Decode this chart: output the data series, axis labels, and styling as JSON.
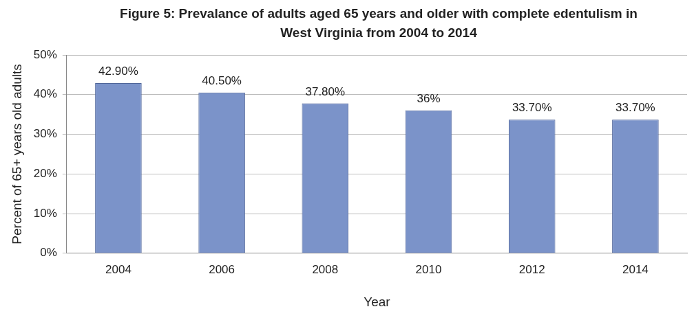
{
  "chart_data": {
    "type": "bar",
    "title": "Figure 5: Prevalance of adults aged 65 years and older with complete edentulism in West Virginia from 2004 to 2014",
    "xlabel": "Year",
    "ylabel": "Percent of 65+ years old adults",
    "categories": [
      "2004",
      "2006",
      "2008",
      "2010",
      "2012",
      "2014"
    ],
    "values": [
      42.9,
      40.5,
      37.8,
      36,
      33.7,
      33.7
    ],
    "value_labels": [
      "42.90%",
      "40.50%",
      "37.80%",
      "36%",
      "33.70%",
      "33.70%"
    ],
    "color": "#7b93c9",
    "ylim": [
      0,
      50
    ],
    "yticks": [
      {
        "value": 0,
        "label": "0%"
      },
      {
        "value": 10,
        "label": "10%"
      },
      {
        "value": 20,
        "label": "20%"
      },
      {
        "value": 30,
        "label": "30%"
      },
      {
        "value": 40,
        "label": "40%"
      },
      {
        "value": 50,
        "label": "50%"
      }
    ],
    "grid": "y",
    "legend": false
  }
}
